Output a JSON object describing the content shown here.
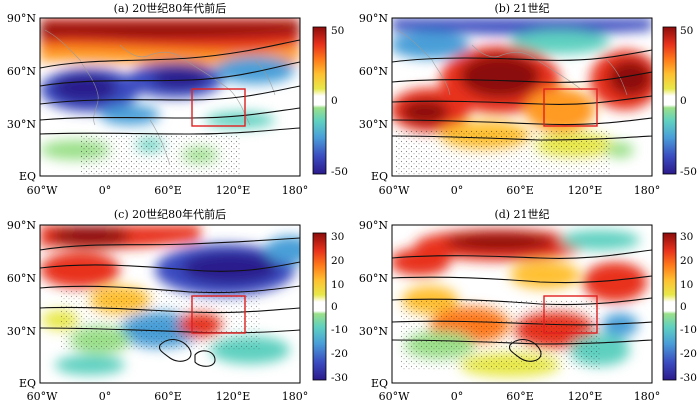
{
  "panels": [
    {
      "id": "a",
      "title": "(a) 20世纪80年代前后",
      "lat_ticks": [
        "90°N",
        "60°N",
        "30°N",
        "EQ"
      ],
      "lon_ticks": [
        "60°W",
        "0°",
        "60°E",
        "120°E",
        "180°"
      ],
      "colorbar_ticks": [
        "50",
        "0",
        "-50"
      ],
      "colorbar_range": [
        -50,
        50
      ]
    },
    {
      "id": "b",
      "title": "(b) 21世纪",
      "lat_ticks": [
        "90°N",
        "60°N",
        "30°N",
        "EQ"
      ],
      "lon_ticks": [
        "60°W",
        "0°",
        "60°E",
        "120°E",
        "180°"
      ],
      "colorbar_ticks": [
        "50",
        "0",
        "-50"
      ],
      "colorbar_range": [
        -50,
        50
      ]
    },
    {
      "id": "c",
      "title": "(c) 20世纪80年代前后",
      "lat_ticks": [
        "90°N",
        "60°N",
        "30°N",
        "EQ"
      ],
      "lon_ticks": [
        "60°W",
        "0°",
        "60°E",
        "120°E",
        "180°"
      ],
      "colorbar_ticks": [
        "30",
        "20",
        "10",
        "0",
        "-10",
        "-20",
        "-30"
      ],
      "colorbar_range": [
        -30,
        30
      ]
    },
    {
      "id": "d",
      "title": "(d) 21世纪",
      "lat_ticks": [
        "90°N",
        "60°N",
        "30°N",
        "EQ"
      ],
      "lon_ticks": [
        "60°W",
        "0°",
        "60°E",
        "120°E",
        "180°"
      ],
      "colorbar_ticks": [
        "30",
        "20",
        "10",
        "0",
        "-10",
        "-20",
        "-30"
      ],
      "colorbar_range": [
        -30,
        30
      ]
    }
  ],
  "highlight_box": {
    "lon": [
      90,
      130
    ],
    "lat": [
      30,
      50
    ],
    "color": "#e02020"
  },
  "colormap": [
    "#2b1a8c",
    "#3b4cc0",
    "#4a9fd8",
    "#5fd0c0",
    "#9be08a",
    "#ffffff",
    "#e8e84a",
    "#ffc030",
    "#ff7a1a",
    "#e8321c",
    "#8c0c0c"
  ]
}
